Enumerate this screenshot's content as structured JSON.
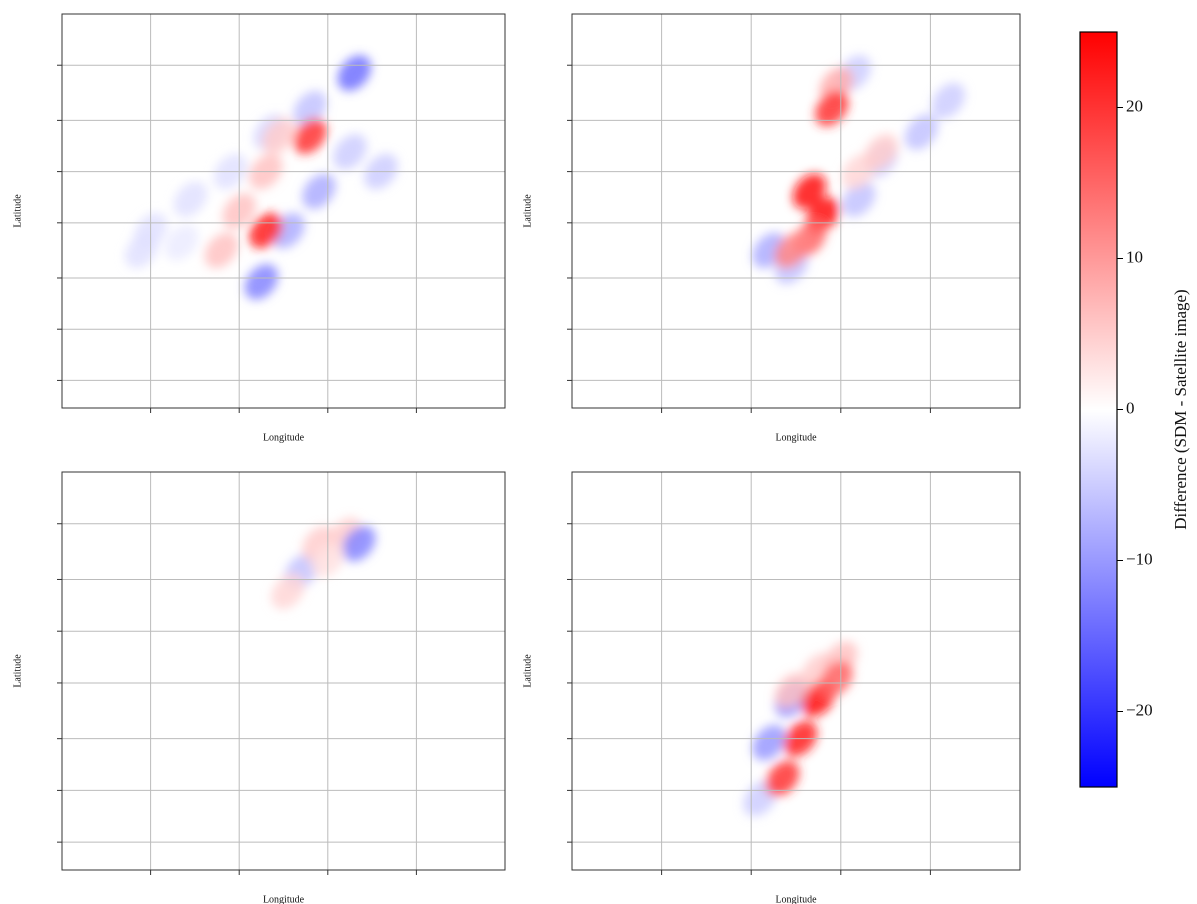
{
  "chart_data": [
    {
      "type": "heatmap",
      "xlabel": "Longitude",
      "ylabel": "Latitude",
      "xlim": [
        0,
        1
      ],
      "ylim": [
        0,
        1
      ],
      "xticks": [
        0.2,
        0.4,
        0.6,
        0.8
      ],
      "yticks": [
        0.07,
        0.2,
        0.33,
        0.47,
        0.6,
        0.73,
        0.87
      ],
      "grid": true,
      "x": [
        0.2,
        0.29,
        0.38,
        0.47,
        0.56,
        0.65,
        0.72,
        0.18,
        0.27,
        0.36,
        0.4,
        0.46,
        0.49,
        0.45,
        0.51,
        0.58,
        0.46,
        0.56,
        0.66
      ],
      "y": [
        0.45,
        0.53,
        0.6,
        0.7,
        0.76,
        0.65,
        0.6,
        0.4,
        0.42,
        0.4,
        0.5,
        0.6,
        0.69,
        0.32,
        0.45,
        0.55,
        0.45,
        0.69,
        0.85
      ],
      "values": [
        -3,
        -3,
        -3,
        -4,
        -6,
        -5,
        -5,
        -3,
        -2,
        6,
        6,
        6,
        5,
        -12,
        -8,
        -8,
        22,
        20,
        -14
      ]
    },
    {
      "type": "heatmap",
      "xlabel": "Longitude",
      "ylabel": "Latitude",
      "xlim": [
        0,
        1
      ],
      "ylim": [
        0,
        1
      ],
      "xticks": [
        0.2,
        0.4,
        0.6,
        0.8
      ],
      "yticks": [
        0.07,
        0.2,
        0.33,
        0.47,
        0.6,
        0.73,
        0.87
      ],
      "grid": true,
      "x": [
        0.63,
        0.69,
        0.78,
        0.84,
        0.64,
        0.44,
        0.49,
        0.64,
        0.69,
        0.59,
        0.58,
        0.53,
        0.56,
        0.53,
        0.49
      ],
      "y": [
        0.85,
        0.63,
        0.7,
        0.78,
        0.53,
        0.4,
        0.36,
        0.6,
        0.65,
        0.82,
        0.76,
        0.55,
        0.49,
        0.43,
        0.4
      ],
      "values": [
        -5,
        -5,
        -6,
        -5,
        -6,
        -8,
        -6,
        4,
        5,
        8,
        20,
        24,
        24,
        15,
        12
      ]
    },
    {
      "type": "heatmap",
      "xlabel": "Longitude",
      "ylabel": "Latitude",
      "xlim": [
        0,
        1
      ],
      "ylim": [
        0,
        1
      ],
      "xticks": [
        0.2,
        0.4,
        0.6,
        0.8
      ],
      "yticks": [
        0.07,
        0.2,
        0.33,
        0.47,
        0.6,
        0.73,
        0.87
      ],
      "grid": true,
      "x": [
        0.54,
        0.58,
        0.64,
        0.67,
        0.51,
        0.6
      ],
      "y": [
        0.75,
        0.82,
        0.84,
        0.82,
        0.7,
        0.78
      ],
      "values": [
        -6,
        5,
        5,
        -12,
        4,
        3
      ]
    },
    {
      "type": "heatmap",
      "xlabel": "Longitude",
      "ylabel": "Latitude",
      "xlim": [
        0,
        1
      ],
      "ylim": [
        0,
        1
      ],
      "xticks": [
        0.2,
        0.4,
        0.6,
        0.8
      ],
      "yticks": [
        0.07,
        0.2,
        0.33,
        0.47,
        0.6,
        0.73,
        0.87
      ],
      "grid": true,
      "x": [
        0.49,
        0.44,
        0.42,
        0.49,
        0.55,
        0.6,
        0.55,
        0.51,
        0.47,
        0.59
      ],
      "y": [
        0.43,
        0.32,
        0.18,
        0.45,
        0.5,
        0.53,
        0.43,
        0.33,
        0.23,
        0.48
      ],
      "values": [
        -12,
        -10,
        -5,
        6,
        5,
        6,
        24,
        22,
        20,
        15
      ]
    }
  ],
  "colorbar": {
    "label": "Difference (SDM - Satellite image)",
    "lim": [
      -25,
      25
    ],
    "ticks": [
      {
        "value": -20,
        "label": "−20"
      },
      {
        "value": -10,
        "label": "−10"
      },
      0,
      10,
      20
    ],
    "colors": [
      "#0000ff",
      "#ffffff",
      "#ff0000"
    ]
  }
}
